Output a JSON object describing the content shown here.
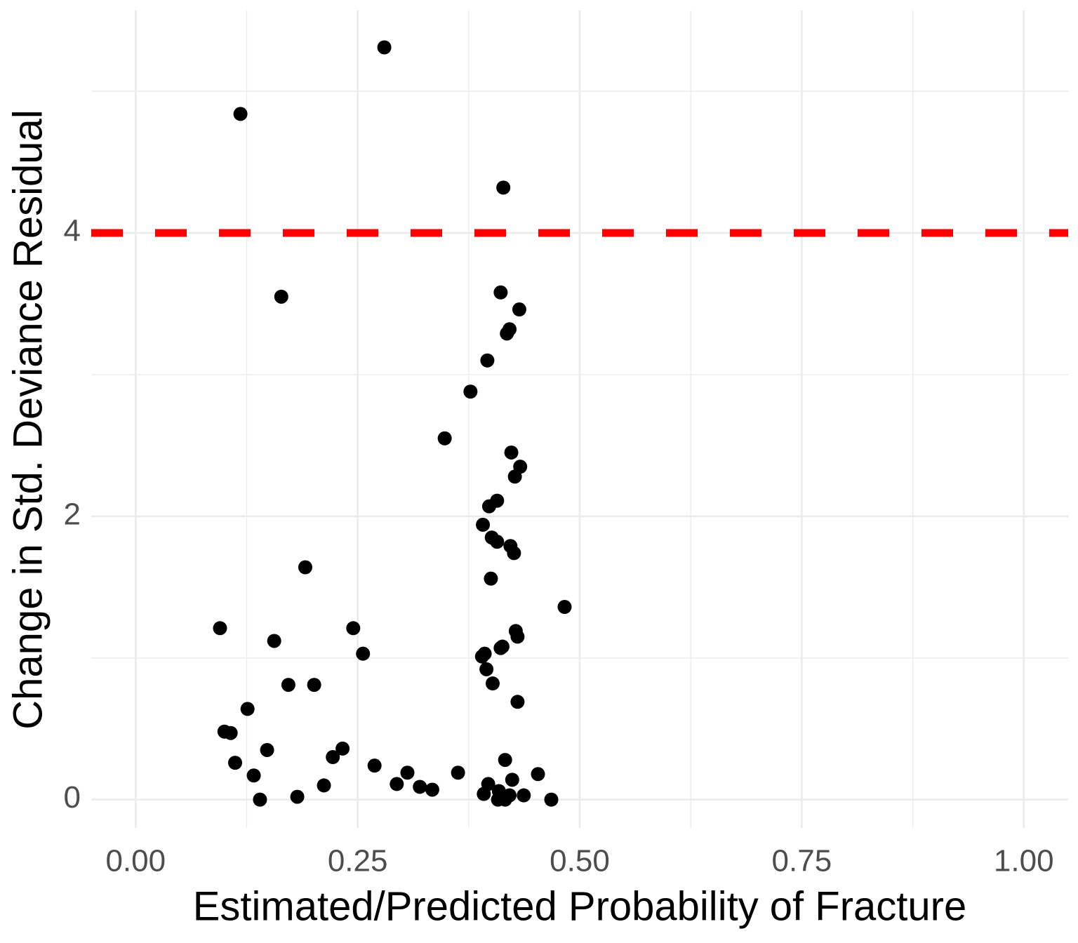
{
  "chart_data": {
    "type": "scatter",
    "x_label": "Estimated/Predicted Probability of Fracture",
    "y_label": "Change in Std. Deviance Residual",
    "x": [
      0.28,
      0.118,
      0.414,
      0.164,
      0.411,
      0.432,
      0.421,
      0.418,
      0.396,
      0.377,
      0.348,
      0.423,
      0.433,
      0.427,
      0.407,
      0.398,
      0.391,
      0.401,
      0.407,
      0.422,
      0.426,
      0.191,
      0.4,
      0.483,
      0.095,
      0.245,
      0.428,
      0.43,
      0.156,
      0.413,
      0.411,
      0.256,
      0.393,
      0.39,
      0.395,
      0.172,
      0.201,
      0.402,
      0.43,
      0.126,
      0.1,
      0.107,
      0.148,
      0.233,
      0.222,
      0.112,
      0.269,
      0.416,
      0.363,
      0.453,
      0.306,
      0.133,
      0.424,
      0.212,
      0.294,
      0.32,
      0.334,
      0.397,
      0.392,
      0.409,
      0.437,
      0.421,
      0.182,
      0.14,
      0.408,
      0.416,
      0.468
    ],
    "values": [
      5.31,
      4.84,
      4.32,
      3.55,
      3.58,
      3.46,
      3.32,
      3.29,
      3.1,
      2.88,
      2.55,
      2.45,
      2.35,
      2.28,
      2.11,
      2.07,
      1.94,
      1.85,
      1.82,
      1.79,
      1.74,
      1.64,
      1.56,
      1.36,
      1.21,
      1.21,
      1.19,
      1.15,
      1.12,
      1.08,
      1.07,
      1.03,
      1.03,
      1.01,
      0.92,
      0.81,
      0.81,
      0.82,
      0.69,
      0.64,
      0.48,
      0.47,
      0.35,
      0.36,
      0.3,
      0.26,
      0.24,
      0.28,
      0.19,
      0.18,
      0.19,
      0.17,
      0.14,
      0.1,
      0.11,
      0.09,
      0.07,
      0.11,
      0.04,
      0.06,
      0.03,
      0.03,
      0.02,
      0.0,
      0.0,
      0.0,
      0.0
    ],
    "color": "#000000",
    "xlim": [
      -0.05,
      1.05
    ],
    "ylim": [
      -0.2,
      5.57
    ],
    "xticks": [
      {
        "value": 0,
        "label": "0.00"
      },
      {
        "value": 0.25,
        "label": "0.25"
      },
      {
        "value": 0.5,
        "label": "0.50"
      },
      {
        "value": 0.75,
        "label": "0.75"
      },
      {
        "value": 1,
        "label": "1.00"
      }
    ],
    "yticks": [
      0,
      2,
      4
    ],
    "x_minor_ticks": [
      0.125,
      0.375,
      0.625,
      0.875
    ],
    "y_minor_ticks": [
      1,
      3,
      5
    ],
    "grid": true,
    "hline": {
      "value": 4,
      "color": "#ff0000"
    }
  }
}
